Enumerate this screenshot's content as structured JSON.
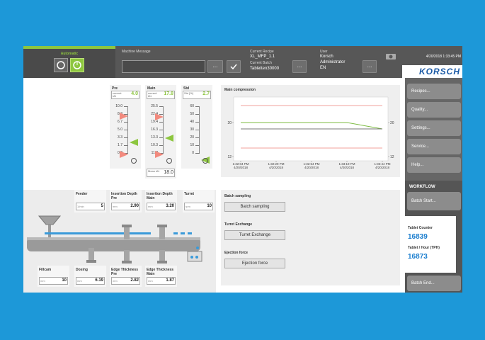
{
  "top_bar": {
    "mode": "Automatic",
    "machine_message_label": "Machine Message",
    "current_recipe_label": "Current Recipe",
    "current_recipe": "XL_MFP_1.1",
    "current_batch_label": "Current Batch",
    "current_batch": "Tabletten30000",
    "user_label": "User",
    "user_lines": [
      "Korsch",
      "Administrator",
      "EN"
    ],
    "datetime": "4/20/2018 1:33:45 PM",
    "logo": "KORSCH",
    "more_button": "..."
  },
  "gauges": [
    {
      "label": "Pre",
      "caption": "current kN",
      "value": "4.0",
      "ticks": [
        "10.0",
        "8.3",
        "6.7",
        "5.0",
        "3.3",
        "1.7",
        "0.0"
      ]
    },
    {
      "label": "Main",
      "caption": "current kN",
      "value": "17.8",
      "ticks": [
        "25.5",
        "22.4",
        "19.4",
        "16.3",
        "13.3",
        "10.3",
        "11.7"
      ],
      "mean_caption": "Mean kN",
      "mean_value": "18.0"
    },
    {
      "label": "Std",
      "caption": "Std [%]",
      "value": "2.7",
      "ticks": [
        "60",
        "50",
        "40",
        "30",
        "20",
        "10",
        "0"
      ]
    }
  ],
  "stations_top": [
    {
      "label": "Feeder",
      "unit": "1/min",
      "value": "5"
    },
    {
      "label": "Insertion Depth Pre",
      "unit": "mm",
      "value": "2.90"
    },
    {
      "label": "Insertion Depth Main",
      "unit": "mm",
      "value": "3.20"
    },
    {
      "label": "Turret",
      "unit": "rpm",
      "value": "10"
    }
  ],
  "stations_bottom": [
    {
      "label": "Fillcam",
      "unit": "mm",
      "value": "10"
    },
    {
      "label": "Dosing",
      "unit": "mm",
      "value": "6.19"
    },
    {
      "label": "Edge Thickness Pre",
      "unit": "mm",
      "value": "2.82"
    },
    {
      "label": "Edge Thickness Main",
      "unit": "mm",
      "value": "1.87"
    }
  ],
  "chart_data": {
    "type": "line",
    "title": "Main compression",
    "categories": [
      "1:32:04 PM 4/20/2018",
      "1:32:29 PM 4/20/2018",
      "1:32:54 PM 4/20/2018",
      "1:33:19 PM 4/20/2018",
      "1:33:44 PM 4/20/2018"
    ],
    "series": [
      {
        "color": "#f2a29b",
        "values": [
          24,
          24,
          24,
          24,
          24
        ]
      },
      {
        "color": "#7dbb42",
        "values": [
          20,
          20,
          20,
          20,
          18.5
        ]
      },
      {
        "color": "#777777",
        "values": [
          18.5,
          18.5,
          18.5,
          18.5,
          18.5
        ]
      },
      {
        "color": "#f2a29b",
        "values": [
          14,
          14,
          14,
          14,
          14
        ]
      }
    ],
    "ylim": [
      11,
      26
    ],
    "yticks": [
      12,
      20
    ],
    "y2lim": [
      11,
      26
    ],
    "y2ticks": [
      12,
      20
    ]
  },
  "actions": [
    {
      "label": "Batch sampling",
      "button": "Batch sampling"
    },
    {
      "label": "Turret Exchange",
      "button": "Turret Exchange"
    },
    {
      "label": "Ejection force",
      "button": "Ejection force"
    }
  ],
  "sidebar": {
    "menu": [
      "Recipes...",
      "Quality...",
      "Settings...",
      "Service...",
      "Help..."
    ],
    "workflow_title": "WORKFLOW",
    "batch_start": "Batch Start...",
    "counter_label": "Tablet Counter",
    "counter_value": "16839",
    "tph_label": "Tablet / Hour (TPH)",
    "tph_value": "16873",
    "batch_end": "Batch End..."
  }
}
